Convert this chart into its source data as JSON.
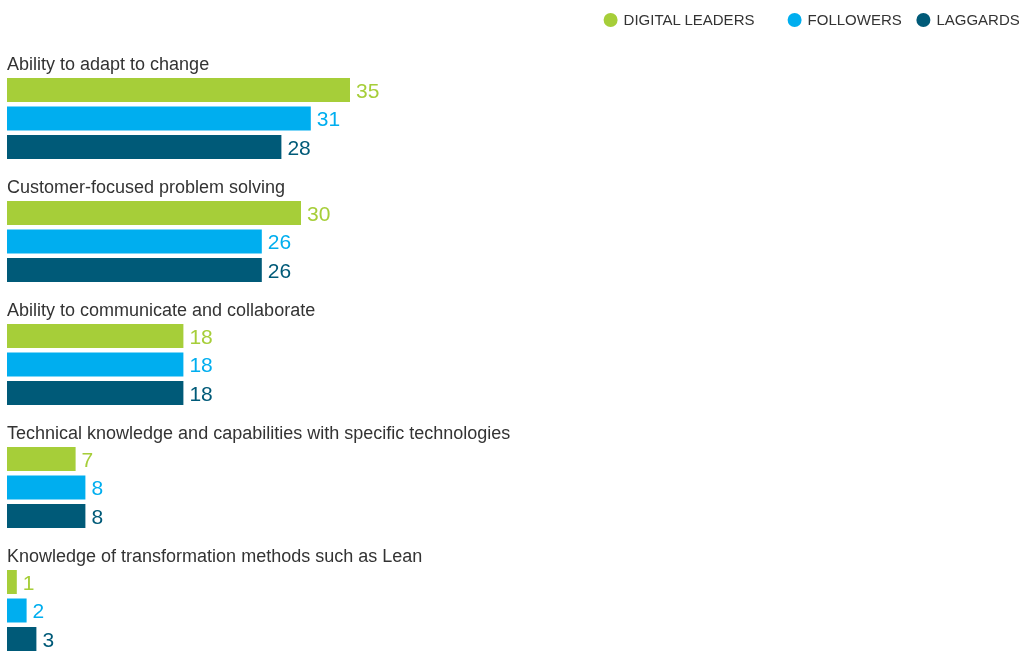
{
  "chart_data": {
    "type": "bar",
    "orientation": "horizontal",
    "data_labels": true,
    "legend": "top right",
    "categories": [
      "Ability to adapt to change",
      "Customer-focused problem solving",
      "Ability to communicate and collaborate",
      "Technical knowledge and capabilities with specific technologies",
      "Knowledge of transformation methods such as Lean"
    ],
    "series": [
      {
        "name": "DIGITAL LEADERS",
        "color": "#a6ce39",
        "values": [
          35,
          30,
          18,
          7,
          1
        ]
      },
      {
        "name": "FOLLOWERS",
        "color": "#00aeef",
        "values": [
          31,
          26,
          18,
          8,
          2
        ]
      },
      {
        "name": "LAGGARDS",
        "color": "#005a78",
        "values": [
          28,
          26,
          18,
          8,
          3
        ]
      }
    ]
  }
}
